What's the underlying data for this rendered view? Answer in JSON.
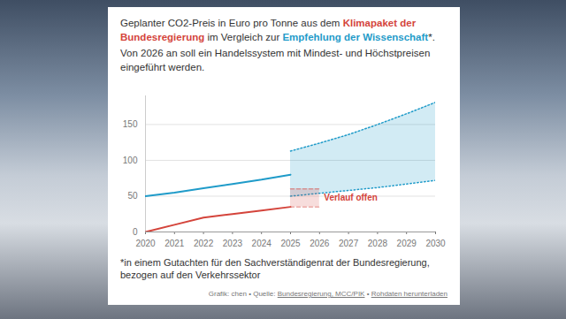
{
  "chart_data": {
    "type": "line",
    "title": [
      "Geplanter CO2-Preis in Euro pro Tonne aus dem ",
      " im Vergleich zur ",
      "*."
    ],
    "subtitle": "Von 2026 an soll ein Handelssystem mit Mindest- und Höchstpreisen eingeführt werden.",
    "note": "*in einem Gutachten für den Sachverständigenrat der Bundesregierung, bezogen auf den Verkehrssektor",
    "source": [
      "Grafik: chen • Quelle: ",
      "Bundesregierung, MCC/PIK",
      " • ",
      "Rohdaten herunterladen"
    ],
    "x": [
      2020,
      2021,
      2022,
      2023,
      2024,
      2025,
      2026,
      2027,
      2028,
      2029,
      2030
    ],
    "xlim": [
      2020,
      2030
    ],
    "xticks": [
      2020,
      2021,
      2022,
      2023,
      2024,
      2025,
      2026,
      2027,
      2028,
      2029,
      2030
    ],
    "ylim": [
      0,
      190
    ],
    "yticks": [
      0,
      50,
      100,
      150
    ],
    "grid": true,
    "series": [
      {
        "name": "Klimapaket der Bundesregierung",
        "color": "#d4443b",
        "line_style": "solid",
        "values": [
          0,
          10,
          20,
          25,
          30,
          35,
          null,
          null,
          null,
          null,
          null
        ]
      },
      {
        "name": "Empfehlung der Wissenschaft",
        "color": "#1f9bc9",
        "line_style": "solid",
        "values": [
          50,
          55,
          61,
          67,
          73,
          80,
          null,
          null,
          null,
          null,
          null
        ]
      },
      {
        "type": "area",
        "color": "#1f9bc9",
        "line_style": "dotted",
        "low": [
          null,
          null,
          null,
          null,
          null,
          50,
          54,
          58,
          62,
          67,
          72
        ],
        "high": [
          null,
          null,
          null,
          null,
          null,
          113,
          124,
          136,
          150,
          165,
          181
        ]
      },
      {
        "type": "area",
        "color": "#d4443b",
        "line_style": "dashed",
        "label": "Verlauf offen",
        "low": [
          null,
          null,
          null,
          null,
          null,
          35,
          35,
          null,
          null,
          null,
          null
        ],
        "high": [
          null,
          null,
          null,
          null,
          null,
          60,
          60,
          null,
          null,
          null,
          null
        ]
      }
    ]
  }
}
